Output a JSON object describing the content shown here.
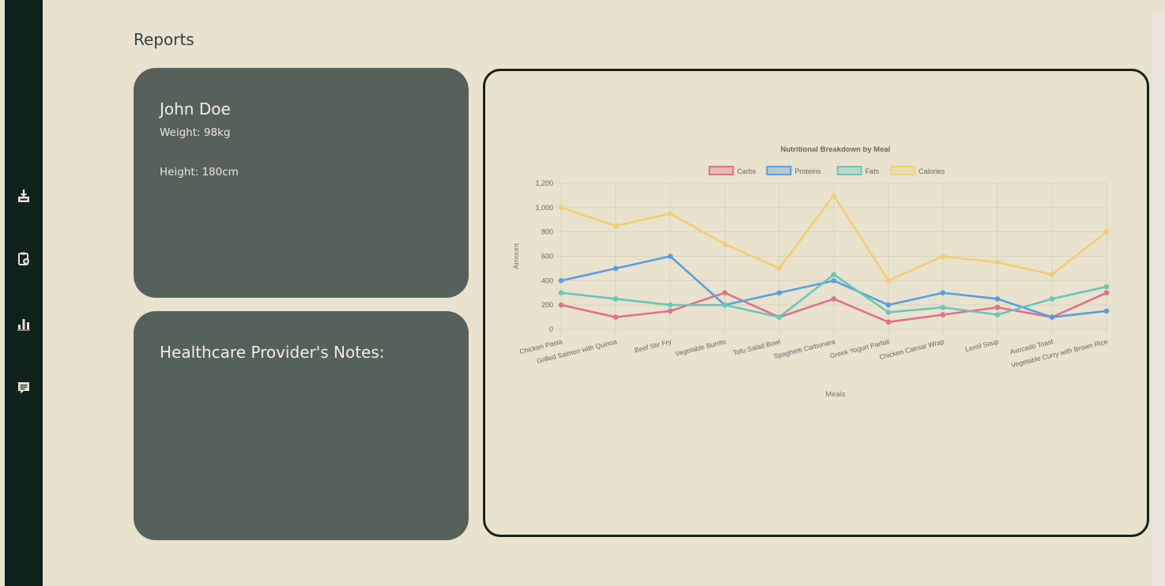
{
  "page": {
    "title": "Reports"
  },
  "sidebar": {
    "items": [
      {
        "icon": "download-tray-icon"
      },
      {
        "icon": "clipboard-add-icon"
      },
      {
        "icon": "bar-chart-icon"
      },
      {
        "icon": "message-icon"
      }
    ]
  },
  "profile": {
    "name": "John Doe",
    "weight": "Weight: 98kg",
    "height": "Height: 180cm"
  },
  "notes": {
    "title": "Healthcare Provider's Notes:"
  },
  "colors": {
    "background": "#e8e2cf",
    "sidebar": "#0f221e",
    "card": "#55615a",
    "carbs": "#e07188",
    "proteins": "#5a9fdd",
    "fats": "#6cc5b9",
    "calories": "#f0cf6f"
  },
  "chart_data": {
    "type": "line",
    "title": "Nutritional Breakdown by Meal",
    "xlabel": "Meals",
    "ylabel": "Amount",
    "ylim": [
      0,
      1200
    ],
    "yticks": [
      "0",
      "200",
      "400",
      "600",
      "800",
      "1,000",
      "1,200"
    ],
    "grid": true,
    "legend_position": "top",
    "categories": [
      "Chicken Pasta",
      "Grilled Salmon with Quinoa",
      "Beef Stir Fry",
      "Vegetable Burrito",
      "Tofu Salad Bowl",
      "Spaghetti Carbonara",
      "Greek Yogurt Parfait",
      "Chicken Caesar Wrap",
      "Lentil Soup",
      "Avocado Toast",
      "Vegetable Curry with Brown Rice"
    ],
    "series": [
      {
        "name": "Carbs",
        "color": "#e07188",
        "values": [
          200,
          100,
          150,
          300,
          100,
          250,
          60,
          120,
          180,
          100,
          300
        ]
      },
      {
        "name": "Proteins",
        "color": "#5a9fdd",
        "values": [
          400,
          500,
          600,
          200,
          300,
          400,
          200,
          300,
          250,
          100,
          150
        ]
      },
      {
        "name": "Fats",
        "color": "#6cc5b9",
        "values": [
          300,
          250,
          200,
          200,
          100,
          450,
          140,
          180,
          120,
          250,
          350
        ]
      },
      {
        "name": "Calories",
        "color": "#f0cf6f",
        "values": [
          1000,
          850,
          950,
          700,
          500,
          1100,
          400,
          600,
          550,
          450,
          800
        ]
      }
    ]
  }
}
